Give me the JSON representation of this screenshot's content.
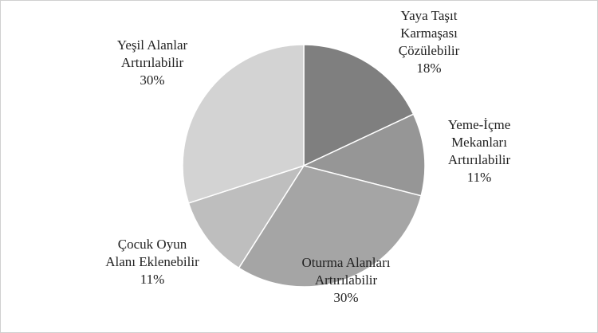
{
  "chart_data": {
    "type": "pie",
    "categories": [
      "Yaya Taşıt Karmaşası Çözülebilir",
      "Yeme-İçme Mekanları Artırılabilir",
      "Oturma Alanları Artırılabilir",
      "Çocuk Oyun Alanı Eklenebilir",
      "Yeşil Alanlar Artırılabilir"
    ],
    "values": [
      18,
      11,
      30,
      11,
      30
    ],
    "value_labels": [
      "18%",
      "11%",
      "30%",
      "11%",
      "30%"
    ],
    "colors": [
      "#7f7f7f",
      "#969696",
      "#a5a5a5",
      "#bebebe",
      "#d3d3d3"
    ]
  }
}
